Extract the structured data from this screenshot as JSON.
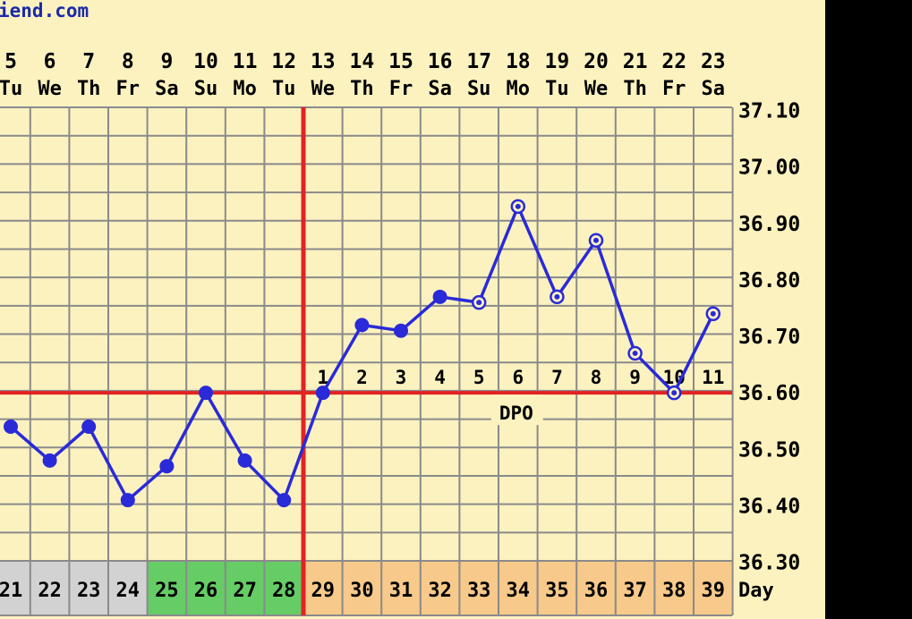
{
  "site_fragment": "iend.com",
  "colors": {
    "background": "#fcf2c0",
    "grid": "#8a8a8a",
    "temp_line": "#2a2ad8",
    "marker": "#e32222",
    "cycle_gray": "#d2d2d2",
    "cycle_green": "#66cc66",
    "cycle_orange": "#f7c98a",
    "title_blue": "#1a2aa8"
  },
  "chart_data": {
    "type": "line",
    "x_dates": [
      "5",
      "6",
      "7",
      "8",
      "9",
      "10",
      "11",
      "12",
      "13",
      "14",
      "15",
      "16",
      "17",
      "18",
      "19",
      "20",
      "21",
      "22",
      "23"
    ],
    "x_weekdays": [
      "Tu",
      "We",
      "Th",
      "Fr",
      "Sa",
      "Su",
      "Mo",
      "Tu",
      "We",
      "Th",
      "Fr",
      "Sa",
      "Su",
      "Mo",
      "Tu",
      "We",
      "Th",
      "Fr",
      "Sa"
    ],
    "cycle_days": [
      "21",
      "22",
      "23",
      "24",
      "25",
      "26",
      "27",
      "28",
      "29",
      "30",
      "31",
      "32",
      "33",
      "34",
      "35",
      "36",
      "37",
      "38",
      "39"
    ],
    "cycle_day_phase": [
      "gray",
      "gray",
      "gray",
      "gray",
      "green",
      "green",
      "green",
      "green",
      "orange",
      "orange",
      "orange",
      "orange",
      "orange",
      "orange",
      "orange",
      "orange",
      "orange",
      "orange",
      "orange"
    ],
    "cycle_day_label": "Day",
    "dpo_numbers": [
      "1",
      "2",
      "3",
      "4",
      "5",
      "6",
      "7",
      "8",
      "9",
      "10",
      "11"
    ],
    "dpo_label": "DPO",
    "series": [
      {
        "values": [
          36.54,
          36.48,
          36.54,
          36.41,
          36.47,
          36.6,
          36.48,
          36.41,
          36.6,
          36.72,
          36.71,
          36.77,
          36.76,
          36.93,
          36.77,
          36.87,
          36.67,
          36.6,
          36.74
        ],
        "marker_style": [
          "filled",
          "filled",
          "filled",
          "filled",
          "filled",
          "filled",
          "filled",
          "filled",
          "filled",
          "filled",
          "filled",
          "filled",
          "open",
          "open",
          "open",
          "open",
          "open",
          "open",
          "open"
        ]
      }
    ],
    "y_ticks": [
      "37.10",
      "37.00",
      "36.90",
      "36.80",
      "36.70",
      "36.60",
      "36.50",
      "36.40",
      "36.30"
    ],
    "ylim": [
      36.3,
      37.1
    ],
    "coverline": 36.6,
    "ovulation_date": "12",
    "grid": true
  }
}
